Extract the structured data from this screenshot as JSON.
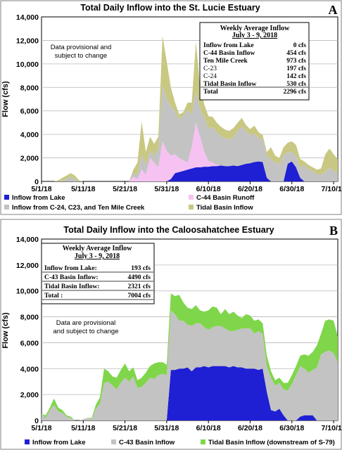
{
  "chart_data": [
    {
      "type": "area",
      "panel_letter": "A",
      "title": "Total Daily Inflow into the St. Lucie Estuary",
      "ylabel": "Flow (cfs)",
      "ylim": [
        0,
        14000
      ],
      "yticks": [
        "0",
        "2,000",
        "4,000",
        "6,000",
        "8,000",
        "10,000",
        "12,000",
        "14,000"
      ],
      "xticks": [
        "5/1/18",
        "5/11/18",
        "5/21/18",
        "5/31/18",
        "6/10/18",
        "6/20/18",
        "6/30/18",
        "7/10/18"
      ],
      "note": [
        "Data provisional and",
        "subject to change"
      ],
      "table_title": [
        "Weekly Average Inflow",
        "July 3 - 9, 2018"
      ],
      "table_rows": [
        {
          "label": "Inflow from Lake",
          "value": "0 cfs",
          "bold": true
        },
        {
          "label": "C-44 Basin Inflow",
          "value": "454 cfs",
          "bold": true
        },
        {
          "label": "Ten Mile Creek",
          "value": "973 cfs",
          "bold": true
        },
        {
          "label": "C-23",
          "value": "197 cfs",
          "bold": false
        },
        {
          "label": "C-24",
          "value": "142 cfs",
          "bold": false
        },
        {
          "label": "Tidal Basin Inflow",
          "value": "530 cfs",
          "bold": true
        },
        {
          "label": "Total",
          "value": "2296 cfs",
          "bold": true
        }
      ],
      "legend": [
        "Inflow from Lake",
        "C-44 Basin Runoff",
        "Inflow from  C-24, C23, and Ten Mile Creek",
        "Tidal Basin Inflow"
      ],
      "colors": [
        "#1f1fd4",
        "#f6c2f2",
        "#c3c3c3",
        "#c8c882"
      ],
      "x": [
        0,
        1,
        2,
        3,
        4,
        5,
        6,
        7,
        8,
        9,
        10,
        11,
        12,
        13,
        14,
        15,
        16,
        17,
        18,
        19,
        20,
        21,
        22,
        23,
        24,
        25,
        26,
        27,
        28,
        29,
        30,
        31,
        32,
        33,
        34,
        35,
        36,
        37,
        38,
        39,
        40,
        41,
        42,
        43,
        44,
        45,
        46,
        47,
        48,
        49,
        50,
        51,
        52,
        53,
        54,
        55,
        56,
        57,
        58,
        59,
        60,
        61,
        62,
        63,
        64,
        65,
        66,
        67,
        68,
        69,
        70,
        71
      ],
      "series": [
        {
          "values": [
            0,
            0,
            0,
            0,
            0,
            0,
            0,
            0,
            0,
            0,
            0,
            0,
            0,
            0,
            0,
            0,
            0,
            0,
            0,
            0,
            0,
            0,
            0,
            0,
            0,
            0,
            0,
            0,
            0,
            0,
            0,
            200,
            700,
            800,
            900,
            1000,
            1100,
            1200,
            1200,
            1250,
            1250,
            1300,
            1300,
            1350,
            1300,
            1300,
            1350,
            1300,
            1400,
            1500,
            1550,
            1650,
            1700,
            1650,
            300,
            0,
            0,
            0,
            0,
            1500,
            1700,
            1200,
            300,
            0,
            0,
            0,
            0,
            0,
            0,
            0,
            0,
            0
          ]
        },
        {
          "values": [
            0,
            0,
            0,
            0,
            0,
            0,
            0,
            0,
            0,
            0,
            0,
            0,
            0,
            0,
            0,
            0,
            0,
            0,
            0,
            0,
            0,
            0,
            400,
            200,
            1000,
            600,
            2000,
            1600,
            1200,
            3400,
            2600,
            2000,
            1600,
            1200,
            900,
            600,
            1800,
            3800,
            2600,
            1300,
            500,
            300,
            100,
            0,
            0,
            0,
            0,
            0,
            0,
            0,
            0,
            0,
            0,
            0,
            0,
            0,
            0,
            0,
            0,
            0,
            0,
            0,
            0,
            0,
            0,
            0,
            0,
            0,
            0,
            0,
            0,
            0
          ]
        },
        {
          "values": [
            0,
            0,
            0,
            0,
            0,
            100,
            200,
            400,
            200,
            0,
            0,
            0,
            0,
            0,
            0,
            0,
            0,
            0,
            0,
            0,
            0,
            0,
            300,
            400,
            1300,
            800,
            600,
            600,
            1600,
            4800,
            4400,
            4200,
            3700,
            3300,
            3800,
            4500,
            2800,
            2700,
            2400,
            2900,
            2800,
            3000,
            2800,
            2500,
            2400,
            2300,
            2400,
            3000,
            3300,
            2800,
            2400,
            2400,
            2000,
            1900,
            1900,
            1900,
            1600,
            1500,
            2200,
            1000,
            800,
            1000,
            900,
            1400,
            1000,
            900,
            600,
            600,
            800,
            1200,
            900,
            700
          ]
        },
        {
          "values": [
            0,
            0,
            0,
            0,
            100,
            200,
            300,
            300,
            300,
            100,
            0,
            0,
            0,
            0,
            0,
            0,
            0,
            0,
            0,
            0,
            0,
            0,
            300,
            1000,
            2800,
            1100,
            1200,
            1000,
            1000,
            4200,
            3200,
            1600,
            700,
            400,
            300,
            600,
            1000,
            4200,
            1800,
            1100,
            1000,
            900,
            800,
            800,
            700,
            700,
            800,
            700,
            700,
            500,
            500,
            700,
            500,
            400,
            300,
            1000,
            600,
            500,
            700,
            800,
            900,
            900,
            700,
            300,
            400,
            300,
            400,
            500,
            1500,
            1600,
            1400,
            1200
          ]
        }
      ]
    },
    {
      "type": "area",
      "panel_letter": "B",
      "title": "Total Daily Inflow into the Caloosahatchee Estuary",
      "ylabel": "Flow (cfs)",
      "ylim": [
        0,
        14000
      ],
      "yticks": [
        "0",
        "2,000",
        "4,000",
        "6,000",
        "8,000",
        "10,000",
        "12,000",
        "14,000"
      ],
      "xticks": [
        "5/1/18",
        "5/11/18",
        "5/21/18",
        "5/31/18",
        "6/10/18",
        "6/20/18",
        "6/30/18",
        "7/10/18"
      ],
      "note": [
        "Data are provisional",
        "and subject to change"
      ],
      "table_title": [
        "Weekly Average Inflow",
        "July 3 - 9, 2018"
      ],
      "table_rows": [
        {
          "label": "Inflow from Lake:",
          "value": "193 cfs"
        },
        {
          "label": "C-43 Basin Inflow:",
          "value": "4490 cfs"
        },
        {
          "label": "Tidal Basin Inflow:",
          "value": "2321 cfs"
        },
        {
          "label": "Total :",
          "value": "7004 cfs"
        }
      ],
      "legend": [
        "Inflow from Lake",
        "C-43 Basin Inflow",
        "Tidal Basin Inflow (downstream of S-79)"
      ],
      "colors": [
        "#1f1fd4",
        "#c3c3c3",
        "#7fd64a"
      ],
      "x": [
        0,
        1,
        2,
        3,
        4,
        5,
        6,
        7,
        8,
        9,
        10,
        11,
        12,
        13,
        14,
        15,
        16,
        17,
        18,
        19,
        20,
        21,
        22,
        23,
        24,
        25,
        26,
        27,
        28,
        29,
        30,
        31,
        32,
        33,
        34,
        35,
        36,
        37,
        38,
        39,
        40,
        41,
        42,
        43,
        44,
        45,
        46,
        47,
        48,
        49,
        50,
        51,
        52,
        53,
        54,
        55,
        56,
        57,
        58,
        59,
        60,
        61,
        62,
        63,
        64,
        65,
        66,
        67,
        68,
        69,
        70,
        71
      ],
      "series": [
        {
          "values": [
            0,
            0,
            0,
            0,
            0,
            0,
            0,
            0,
            0,
            0,
            0,
            0,
            0,
            0,
            0,
            0,
            0,
            0,
            0,
            0,
            0,
            0,
            0,
            0,
            0,
            0,
            0,
            0,
            0,
            0,
            0,
            3900,
            3900,
            4000,
            4000,
            4100,
            3800,
            4100,
            4100,
            4200,
            4100,
            4200,
            4200,
            4200,
            4200,
            4100,
            4200,
            4100,
            4100,
            4000,
            4000,
            4000,
            3900,
            4000,
            2200,
            800,
            700,
            900,
            400,
            0,
            0,
            0,
            300,
            400,
            400,
            400,
            0,
            0,
            0,
            0,
            0,
            0
          ]
        },
        {
          "values": [
            500,
            200,
            800,
            1200,
            700,
            600,
            300,
            200,
            0,
            0,
            100,
            200,
            100,
            900,
            1300,
            2900,
            3000,
            2700,
            2400,
            2900,
            3300,
            3000,
            3400,
            2500,
            2600,
            2900,
            3300,
            3200,
            3500,
            3600,
            3500,
            4600,
            4300,
            3700,
            3700,
            3300,
            3500,
            3400,
            3400,
            3000,
            2900,
            3000,
            3100,
            3100,
            2900,
            2800,
            2700,
            2900,
            3000,
            3100,
            3100,
            2700,
            3000,
            2700,
            2000,
            2500,
            2000,
            2000,
            2000,
            2300,
            2800,
            3500,
            3900,
            3600,
            3300,
            3500,
            4100,
            5100,
            5300,
            5400,
            5200,
            4500
          ]
        },
        {
          "values": [
            0,
            200,
            200,
            500,
            300,
            200,
            100,
            100,
            0,
            0,
            0,
            0,
            100,
            300,
            500,
            1100,
            800,
            700,
            900,
            1000,
            1100,
            800,
            700,
            600,
            700,
            800,
            900,
            1200,
            1000,
            900,
            800,
            1300,
            1400,
            2000,
            1400,
            1300,
            1300,
            1400,
            1000,
            1200,
            1500,
            1600,
            1400,
            900,
            1500,
            1300,
            1500,
            1100,
            800,
            1100,
            1000,
            1000,
            900,
            800,
            800,
            500,
            400,
            400,
            500,
            600,
            700,
            700,
            800,
            1100,
            1300,
            1400,
            1700,
            1600,
            2400,
            2400,
            2500,
            2000
          ]
        }
      ]
    }
  ]
}
